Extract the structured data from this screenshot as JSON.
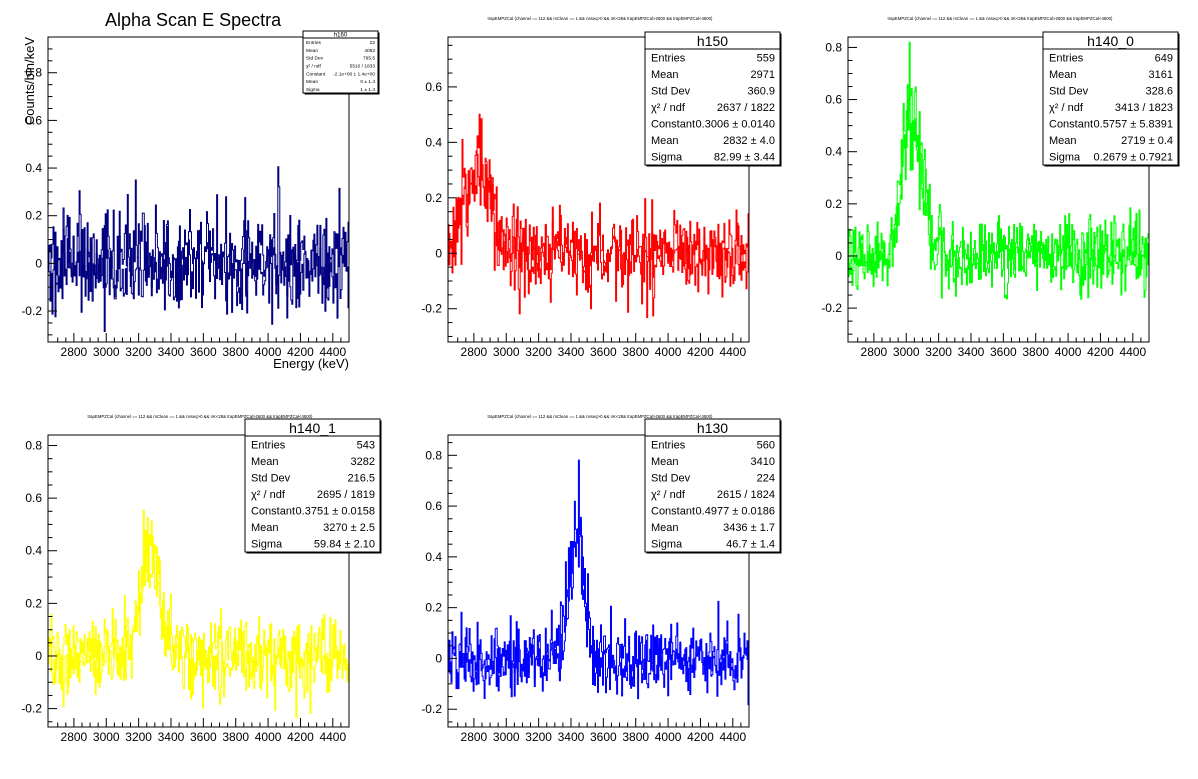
{
  "chart_data": [
    {
      "type": "histogram",
      "title": "Alpha Scan E Spectra",
      "xlabel": "Energy (keV)",
      "ylabel": "Counts/bin/keV",
      "color": "#000080",
      "xlim": [
        2640,
        4500
      ],
      "ylim": [
        -0.33,
        0.95
      ],
      "xticks": [
        "2800",
        "3000",
        "3200",
        "3400",
        "3600",
        "3800",
        "4000",
        "4200",
        "4400"
      ],
      "yticks": [
        "-0.2",
        "0",
        "0.2",
        "0.4",
        "0.6",
        "0.8"
      ],
      "peak": null,
      "noise": 0.1,
      "stats": {
        "name": "h160",
        "rows": [
          {
            "label": "Entries",
            "value": "22"
          },
          {
            "label": "Mean",
            "value": "4052"
          },
          {
            "label": "Std Dev",
            "value": "795.5"
          },
          {
            "label": "χ² / ndf",
            "value": "5510 / 1833"
          },
          {
            "label": "Constant",
            "value": "-2.1e+00 ± 1.4e+00"
          },
          {
            "label": "Mean",
            "value": "0 ± 1.4"
          },
          {
            "label": "Sigma",
            "value": "1 ± 1.4"
          }
        ]
      }
    },
    {
      "type": "histogram",
      "title": "trapEMPZCal {channel == 112 && mClean == 1 && nsseq>0 && nK<28& trapEMPZCal>2600 && trapEMPZCal<4500}",
      "xlabel": "",
      "ylabel": "",
      "color": "#ff0000",
      "xlim": [
        2640,
        4500
      ],
      "ylim": [
        -0.32,
        0.78
      ],
      "xticks": [
        "2800",
        "3000",
        "3200",
        "3400",
        "3600",
        "3800",
        "4000",
        "4200",
        "4400"
      ],
      "yticks": [
        "-0.2",
        "0",
        "0.2",
        "0.4",
        "0.6"
      ],
      "peak": {
        "amp": 0.3006,
        "mean": 2832,
        "sigma": 82.99
      },
      "noise": 0.07,
      "stats": {
        "name": "h150",
        "rows": [
          {
            "label": "Entries",
            "value": "559"
          },
          {
            "label": "Mean",
            "value": "2971"
          },
          {
            "label": "Std Dev",
            "value": "360.9"
          },
          {
            "label": "χ² / ndf",
            "value": "2637 / 1822"
          },
          {
            "label": "Constant",
            "value": "0.3006 ± 0.0140"
          },
          {
            "label": "Mean",
            "value": "2832 ± 4.0"
          },
          {
            "label": "Sigma",
            "value": "82.99 ± 3.44"
          }
        ]
      }
    },
    {
      "type": "histogram",
      "title": "trapEMPZCal {channel == 112 && mClean == 1 && nsseq>0 && nK<28& trapEMPZCal>2600 && trapEMPZCal<4500}",
      "xlabel": "",
      "ylabel": "",
      "color": "#00ff00",
      "xlim": [
        2640,
        4500
      ],
      "ylim": [
        -0.33,
        0.84
      ],
      "xticks": [
        "2800",
        "3000",
        "3200",
        "3400",
        "3600",
        "3800",
        "4000",
        "4200",
        "4400"
      ],
      "yticks": [
        "-0.2",
        "0",
        "0.2",
        "0.4",
        "0.6",
        "0.8"
      ],
      "peak": {
        "amp": 0.58,
        "mean": 3030,
        "sigma": 60
      },
      "noise": 0.07,
      "stats": {
        "name": "h140_0",
        "rows": [
          {
            "label": "Entries",
            "value": "649"
          },
          {
            "label": "Mean",
            "value": "3161"
          },
          {
            "label": "Std Dev",
            "value": "328.6"
          },
          {
            "label": "χ² / ndf",
            "value": "3413 / 1823"
          },
          {
            "label": "Constant",
            "value": "0.5757 ± 5.8391"
          },
          {
            "label": "Mean",
            "value": "2719 ± 0.4"
          },
          {
            "label": "Sigma",
            "value": "0.2679 ± 0.7921"
          }
        ]
      }
    },
    {
      "type": "histogram",
      "title": "trapEMPZCal {channel == 112 && mClean == 1 && nsseq>0 && nK<28& trapEMPZCal>2600 && trapEMPZCal<4500}",
      "xlabel": "",
      "ylabel": "",
      "color": "#ffff00",
      "xlim": [
        2640,
        4500
      ],
      "ylim": [
        -0.27,
        0.84
      ],
      "xticks": [
        "2800",
        "3000",
        "3200",
        "3400",
        "3600",
        "3800",
        "4000",
        "4200",
        "4400"
      ],
      "yticks": [
        "-0.2",
        "0",
        "0.2",
        "0.4",
        "0.6",
        "0.8"
      ],
      "peak": {
        "amp": 0.3751,
        "mean": 3270,
        "sigma": 59.84
      },
      "noise": 0.07,
      "stats": {
        "name": "h140_1",
        "rows": [
          {
            "label": "Entries",
            "value": "543"
          },
          {
            "label": "Mean",
            "value": "3282"
          },
          {
            "label": "Std Dev",
            "value": "216.5"
          },
          {
            "label": "χ² / ndf",
            "value": "2695 / 1819"
          },
          {
            "label": "Constant",
            "value": "0.3751 ± 0.0158"
          },
          {
            "label": "Mean",
            "value": "3270 ± 2.5"
          },
          {
            "label": "Sigma",
            "value": "59.84 ± 2.10"
          }
        ]
      }
    },
    {
      "type": "histogram",
      "title": "trapEMPZCal {channel == 112 && mClean == 1 && nsseq>0 && nK<28& trapEMPZCal>2600 && trapEMPZCal<4500}",
      "xlabel": "",
      "ylabel": "",
      "color": "#0000ff",
      "xlim": [
        2640,
        4500
      ],
      "ylim": [
        -0.27,
        0.88
      ],
      "xticks": [
        "2800",
        "3000",
        "3200",
        "3400",
        "3600",
        "3800",
        "4000",
        "4200",
        "4400"
      ],
      "yticks": [
        "-0.2",
        "0",
        "0.2",
        "0.4",
        "0.6",
        "0.8"
      ],
      "peak": {
        "amp": 0.4977,
        "mean": 3436,
        "sigma": 46.7
      },
      "noise": 0.07,
      "stats": {
        "name": "h130",
        "rows": [
          {
            "label": "Entries",
            "value": "560"
          },
          {
            "label": "Mean",
            "value": "3410"
          },
          {
            "label": "Std Dev",
            "value": "224"
          },
          {
            "label": "χ² / ndf",
            "value": "2615 / 1824"
          },
          {
            "label": "Constant",
            "value": "0.4977 ± 0.0186"
          },
          {
            "label": "Mean",
            "value": "3436 ± 1.7"
          },
          {
            "label": "Sigma",
            "value": "46.7 ± 1.4"
          }
        ]
      }
    }
  ]
}
